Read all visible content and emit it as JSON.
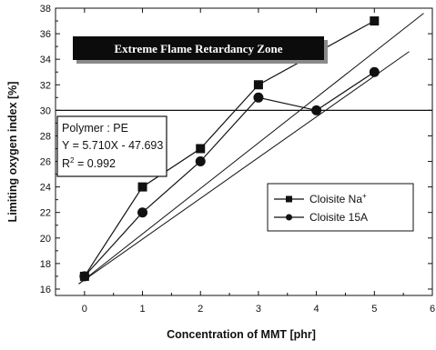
{
  "chart_data": {
    "type": "line",
    "xlabel": "Concentration of MMT [phr]",
    "ylabel": "Limiting oxygen index [%]",
    "xlim": [
      -0.5,
      6
    ],
    "ylim": [
      15.5,
      38
    ],
    "x_ticks": [
      0,
      1,
      2,
      3,
      4,
      5,
      6
    ],
    "y_ticks": [
      16,
      18,
      20,
      22,
      24,
      26,
      28,
      30,
      32,
      34,
      36,
      38
    ],
    "reference_line_y": 30,
    "zone_label": "Extreme Flame Retardancy Zone",
    "info_box": {
      "line1": "Polymer : PE",
      "line2": "Y = 5.710X - 47.693",
      "line3_prefix": "R",
      "line3_sup": "2",
      "line3_suffix": " = 0.992"
    },
    "series": [
      {
        "name": "Cloisite Na",
        "name_sup": "+",
        "marker": "square",
        "x": [
          0,
          1,
          2,
          3,
          5
        ],
        "y": [
          17,
          24,
          27,
          32,
          37
        ]
      },
      {
        "name": "Cloisite 15A",
        "marker": "circle",
        "x": [
          0,
          1,
          2,
          3,
          4,
          5
        ],
        "y": [
          17,
          22,
          26,
          31,
          30,
          33
        ]
      }
    ],
    "fit_lines": [
      {
        "x": [
          -0.1,
          5.85
        ],
        "y": [
          16.4,
          37.6
        ]
      },
      {
        "x": [
          -0.1,
          5.6
        ],
        "y": [
          16.4,
          34.6
        ]
      }
    ],
    "legend_position": "right-middle",
    "grid": false
  }
}
